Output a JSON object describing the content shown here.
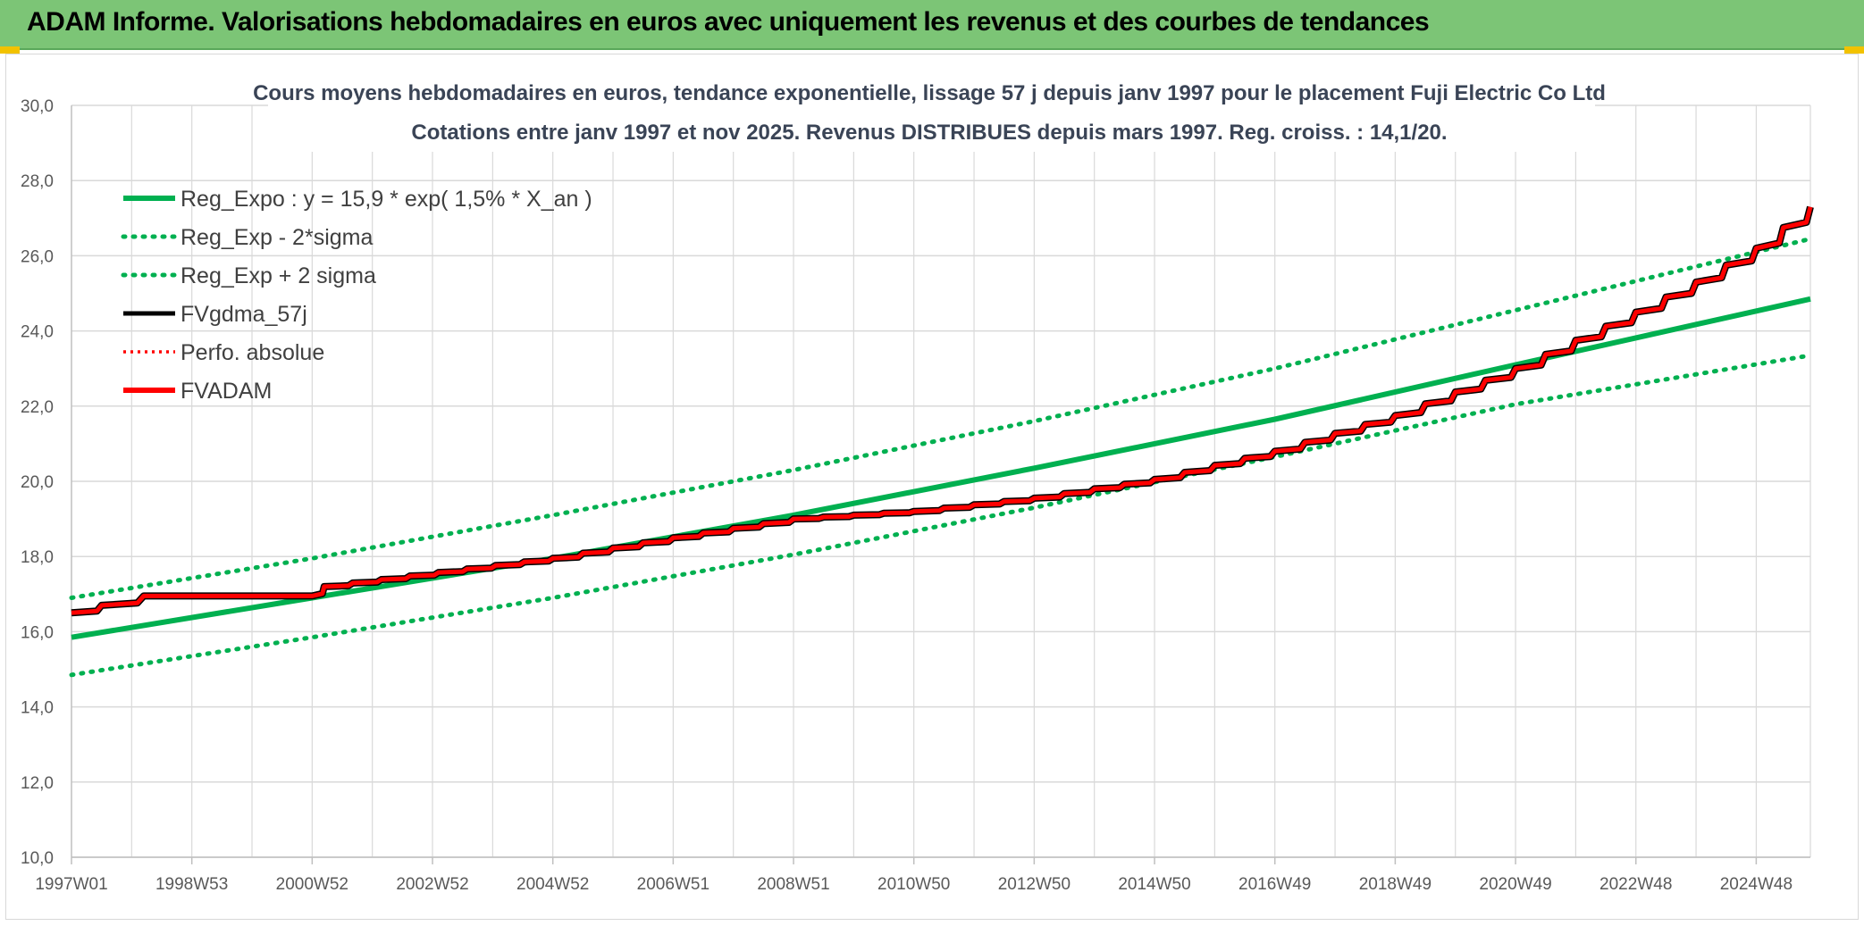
{
  "header": {
    "title": "ADAM Informe. Valorisations hebdomadaires en euros avec uniquement les revenus et des courbes de tendances"
  },
  "colors": {
    "header_bg": "#7cc576",
    "green": "#00b050",
    "red": "#ff0000",
    "black": "#000000",
    "grid": "#d9d9d9"
  },
  "chart_data": {
    "type": "line",
    "title": "Cours moyens hebdomadaires en euros, tendance exponentielle, lissage 57 j depuis janv 1997 pour le placement Fuji Electric Co Ltd",
    "subtitle": "Cotations entre janv 1997 et nov 2025. Revenus DISTRIBUES depuis mars 1997. Reg. croiss. : 14,1/20.",
    "ylim": [
      10,
      30
    ],
    "yticks": [
      "30,0",
      "28,0",
      "26,0",
      "24,0",
      "22,0",
      "20,0",
      "18,0",
      "16,0",
      "14,0",
      "12,0",
      "10,0"
    ],
    "ytick_values": [
      30,
      28,
      26,
      24,
      22,
      20,
      18,
      16,
      14,
      12,
      10
    ],
    "xlim": [
      1997.0,
      2025.9
    ],
    "xticks": [
      "1997W01",
      "1998W53",
      "2000W52",
      "2002W52",
      "2004W52",
      "2006W51",
      "2008W51",
      "2010W50",
      "2012W50",
      "2014W50",
      "2016W49",
      "2018W49",
      "2020W49",
      "2022W48",
      "2024W48"
    ],
    "xtick_values": [
      1997.0,
      1999.0,
      2001.0,
      2003.0,
      2005.0,
      2007.0,
      2009.0,
      2011.0,
      2013.0,
      2015.0,
      2017.0,
      2019.0,
      2021.0,
      2023.0,
      2025.0
    ],
    "grid": true,
    "legend_position": "top-left",
    "legend": [
      {
        "label": "Reg_Expo : y = 15,9 * exp( 1,5% *  X_an )",
        "style": "solid-green"
      },
      {
        "label": "Reg_Exp - 2*sigma",
        "style": "dotted-green"
      },
      {
        "label": "Reg_Exp + 2 sigma",
        "style": "dotted-green"
      },
      {
        "label": "FVgdma_57j",
        "style": "solid-black"
      },
      {
        "label": "Perfo. absolue",
        "style": "dotted-red"
      },
      {
        "label": "FVADAM",
        "style": "solid-red"
      }
    ],
    "series": [
      {
        "name": "Reg_Expo : y = 15,9 * exp( 1,5% *  X_an )",
        "x": [
          1997.0,
          2001.0,
          2005.0,
          2009.0,
          2013.0,
          2017.0,
          2021.0,
          2025.9
        ],
        "values": [
          15.85,
          16.9,
          17.95,
          19.1,
          20.35,
          21.65,
          23.1,
          24.85
        ]
      },
      {
        "name": "Reg_Exp - 2*sigma",
        "x": [
          1997.0,
          2001.0,
          2005.0,
          2009.0,
          2013.0,
          2017.0,
          2021.0,
          2025.9
        ],
        "values": [
          14.85,
          15.85,
          16.9,
          18.05,
          19.3,
          20.65,
          22.05,
          23.35
        ]
      },
      {
        "name": "Reg_Exp + 2 sigma",
        "x": [
          1997.0,
          2001.0,
          2005.0,
          2009.0,
          2013.0,
          2017.0,
          2021.0,
          2025.9
        ],
        "values": [
          16.9,
          17.95,
          19.1,
          20.3,
          21.6,
          23.0,
          24.55,
          26.45
        ]
      },
      {
        "name": "FVgdma_57j",
        "x": [
          1997.0,
          1997.5,
          1998.2,
          2001.0,
          2001.2,
          2005.0,
          2007.0,
          2009.0,
          2011.0,
          2013.0,
          2015.0,
          2017.0,
          2019.0,
          2021.0,
          2023.0,
          2024.0,
          2025.0,
          2025.9
        ],
        "values": [
          16.5,
          16.7,
          16.95,
          16.95,
          17.2,
          17.95,
          18.5,
          19.0,
          19.2,
          19.55,
          20.05,
          20.8,
          21.75,
          23.0,
          24.5,
          25.3,
          26.2,
          27.3
        ]
      },
      {
        "name": "FVADAM",
        "x": [
          1997.0,
          1997.5,
          1998.2,
          2001.0,
          2001.2,
          2005.0,
          2007.0,
          2009.0,
          2011.0,
          2013.0,
          2015.0,
          2017.0,
          2019.0,
          2021.0,
          2023.0,
          2024.0,
          2025.0,
          2025.9
        ],
        "values": [
          16.5,
          16.7,
          16.95,
          16.95,
          17.2,
          17.95,
          18.5,
          19.0,
          19.2,
          19.55,
          20.05,
          20.8,
          21.75,
          23.0,
          24.5,
          25.3,
          26.2,
          27.3
        ]
      }
    ]
  }
}
